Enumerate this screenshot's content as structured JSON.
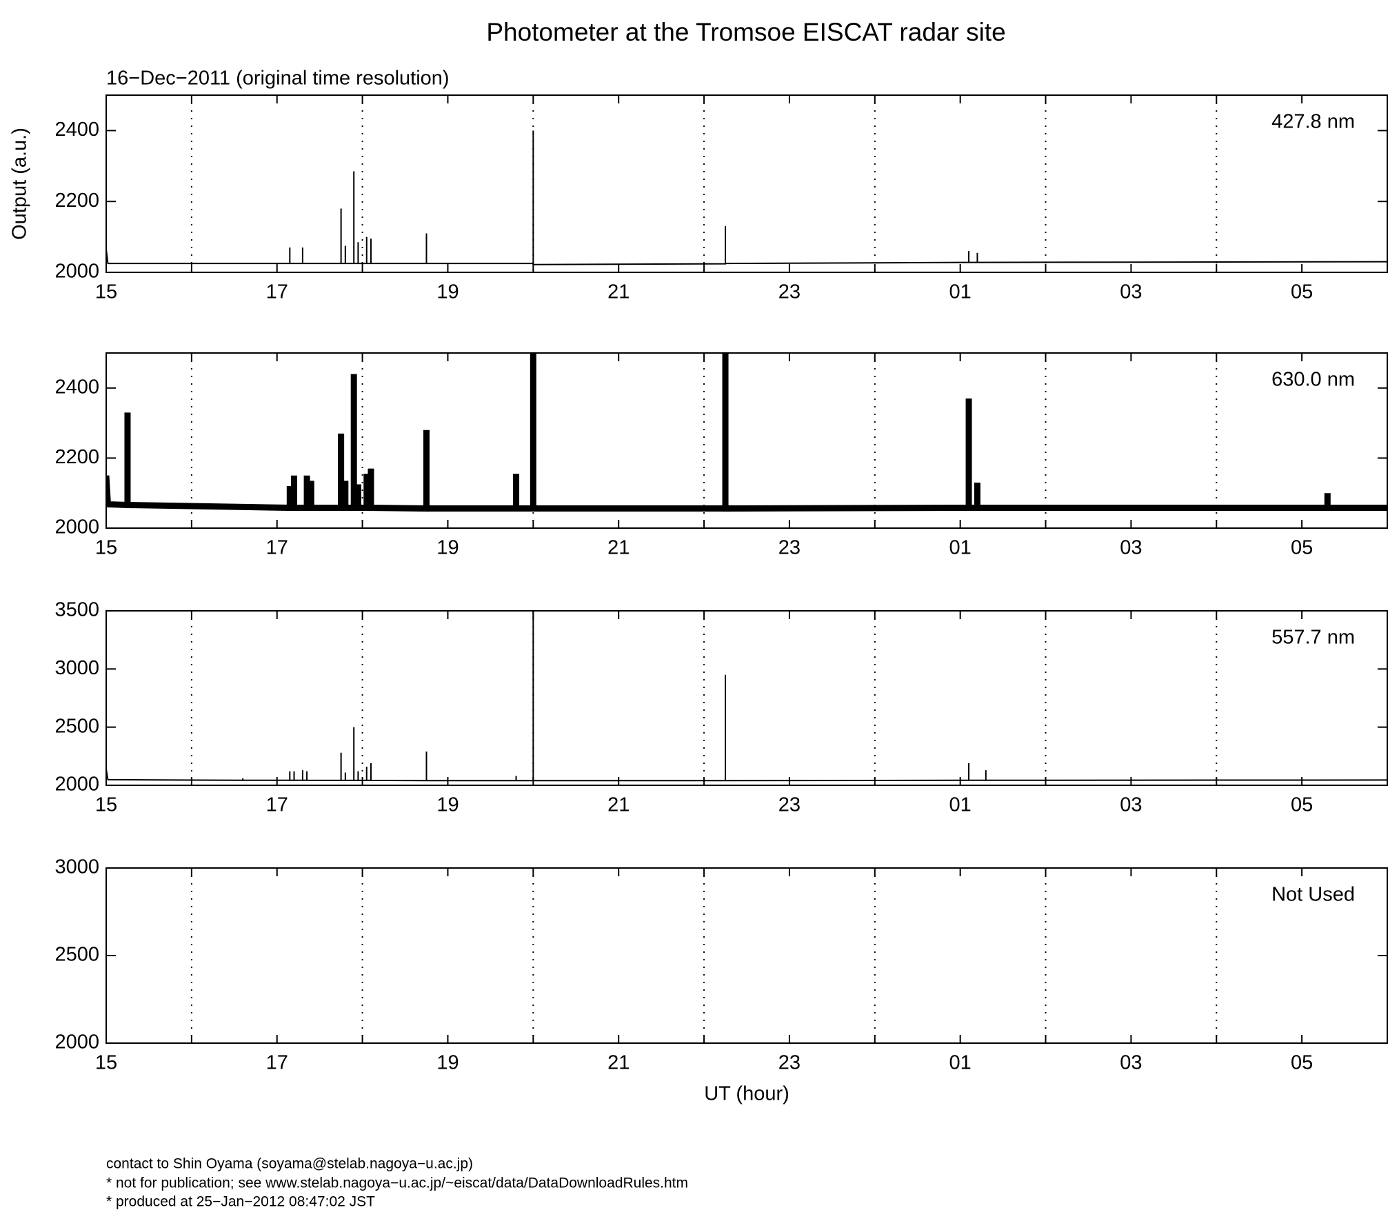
{
  "title": "Photometer at the Tromsoe EISCAT radar site",
  "subtitle": "16−Dec−2011 (original time resolution)",
  "footer": [
    "contact to Shin Oyama (soyama@stelab.nagoya−u.ac.jp)",
    "* not for publication; see www.stelab.nagoya−u.ac.jp/~eiscat/data/DataDownloadRules.htm",
    "* produced at 25−Jan−2012 08:47:02 JST"
  ],
  "chart_data": [
    {
      "type": "line",
      "label": "427.8 nm",
      "ylabel": "Output (a.u.)",
      "color": "#000000",
      "xlim": [
        15,
        30
      ],
      "xticks": [
        15,
        17,
        19,
        21,
        23,
        {
          "value": 25,
          "label": "01"
        },
        {
          "value": 27,
          "label": "03"
        },
        {
          "value": 29,
          "label": "05"
        }
      ],
      "xgrid": [
        16,
        18,
        20,
        22,
        24,
        26,
        28
      ],
      "ylim": [
        2000,
        2500
      ],
      "yticks": [
        2000,
        2200,
        2400
      ],
      "x": [
        15,
        15.02,
        17.15,
        17.15,
        17.15,
        17.3,
        17.3,
        17.3,
        17.75,
        17.75,
        17.75,
        17.8,
        17.8,
        17.8,
        17.9,
        17.9,
        17.9,
        17.95,
        17.95,
        17.95,
        18.05,
        18.05,
        18.05,
        18.1,
        18.1,
        18.1,
        18.75,
        18.75,
        18.75,
        20,
        20,
        20,
        22.25,
        22.25,
        22.25,
        25.1,
        25.1,
        25.1,
        25.2,
        25.2,
        25.2,
        30
      ],
      "values": [
        2065,
        2025,
        2025,
        2070,
        2025,
        2025,
        2070,
        2025,
        2025,
        2180,
        2025,
        2025,
        2075,
        2025,
        2025,
        2285,
        2025,
        2025,
        2085,
        2025,
        2025,
        2100,
        2025,
        2025,
        2095,
        2025,
        2025,
        2110,
        2025,
        2025,
        2400,
        2022,
        2024,
        2130,
        2025,
        2028,
        2060,
        2028,
        2028,
        2055,
        2028,
        2030
      ]
    },
    {
      "type": "line",
      "label": "630.0 nm",
      "color": "#000000",
      "xlim": [
        15,
        30
      ],
      "xticks": [
        15,
        17,
        19,
        21,
        23,
        {
          "value": 25,
          "label": "01"
        },
        {
          "value": 27,
          "label": "03"
        },
        {
          "value": 29,
          "label": "05"
        }
      ],
      "xgrid": [
        16,
        18,
        20,
        22,
        24,
        26,
        28
      ],
      "ylim": [
        2000,
        2500
      ],
      "yticks": [
        2000,
        2200,
        2400
      ],
      "x": [
        15,
        15.02,
        15.25,
        15.25,
        15.25,
        17.15,
        17.15,
        17.15,
        17.2,
        17.2,
        17.2,
        17.35,
        17.35,
        17.35,
        17.4,
        17.4,
        17.4,
        17.75,
        17.75,
        17.75,
        17.8,
        17.8,
        17.8,
        17.9,
        17.9,
        17.9,
        17.95,
        17.95,
        17.95,
        18.05,
        18.05,
        18.05,
        18.1,
        18.1,
        18.1,
        18.75,
        18.75,
        18.75,
        19.8,
        19.8,
        19.8,
        20,
        20,
        20,
        22.25,
        22.25,
        22.25,
        25.1,
        25.1,
        25.1,
        25.2,
        25.2,
        25.2,
        29.3,
        29.3,
        29.3,
        30
      ],
      "values": [
        2150,
        2068,
        2066,
        2330,
        2066,
        2058,
        2120,
        2058,
        2058,
        2150,
        2058,
        2058,
        2150,
        2058,
        2058,
        2135,
        2058,
        2058,
        2270,
        2058,
        2058,
        2135,
        2058,
        2058,
        2440,
        2058,
        2058,
        2125,
        2058,
        2058,
        2155,
        2058,
        2058,
        2170,
        2058,
        2056,
        2280,
        2056,
        2056,
        2155,
        2056,
        2056,
        2500,
        2056,
        2056,
        2500,
        2056,
        2058,
        2370,
        2058,
        2058,
        2130,
        2058,
        2058,
        2100,
        2058,
        2058
      ]
    },
    {
      "type": "line",
      "label": "557.7 nm",
      "color": "#000000",
      "xlim": [
        15,
        30
      ],
      "xticks": [
        15,
        17,
        19,
        21,
        23,
        {
          "value": 25,
          "label": "01"
        },
        {
          "value": 27,
          "label": "03"
        },
        {
          "value": 29,
          "label": "05"
        }
      ],
      "xgrid": [
        16,
        18,
        20,
        22,
        24,
        26,
        28
      ],
      "ylim": [
        2000,
        3500
      ],
      "yticks": [
        2000,
        2500,
        3000,
        3500
      ],
      "x": [
        15,
        15.02,
        16.6,
        16.6,
        16.6,
        17.15,
        17.15,
        17.15,
        17.2,
        17.2,
        17.2,
        17.3,
        17.3,
        17.3,
        17.35,
        17.35,
        17.35,
        17.75,
        17.75,
        17.75,
        17.8,
        17.8,
        17.8,
        17.9,
        17.9,
        17.9,
        17.95,
        17.95,
        17.95,
        18.05,
        18.05,
        18.05,
        18.1,
        18.1,
        18.1,
        18.75,
        18.75,
        18.75,
        19.8,
        19.8,
        19.8,
        20,
        20,
        20,
        22.25,
        22.25,
        22.25,
        25.1,
        25.1,
        25.1,
        25.3,
        25.3,
        25.3,
        30
      ],
      "values": [
        2140,
        2048,
        2043,
        2060,
        2043,
        2043,
        2120,
        2043,
        2043,
        2120,
        2043,
        2043,
        2130,
        2043,
        2043,
        2120,
        2043,
        2042,
        2280,
        2042,
        2042,
        2110,
        2042,
        2042,
        2500,
        2042,
        2042,
        2120,
        2042,
        2042,
        2160,
        2042,
        2042,
        2190,
        2042,
        2040,
        2290,
        2040,
        2040,
        2080,
        2040,
        2040,
        3500,
        2040,
        2040,
        2950,
        2040,
        2043,
        2190,
        2043,
        2043,
        2130,
        2043,
        2045
      ]
    },
    {
      "type": "line",
      "label": "Not Used",
      "xlabel": "UT (hour)",
      "xlim": [
        15,
        30
      ],
      "xticks": [
        15,
        17,
        19,
        21,
        23,
        {
          "value": 25,
          "label": "01"
        },
        {
          "value": 27,
          "label": "03"
        },
        {
          "value": 29,
          "label": "05"
        }
      ],
      "xgrid": [
        16,
        18,
        20,
        22,
        24,
        26,
        28
      ],
      "ylim": [
        2000,
        3000
      ],
      "yticks": [
        2000,
        2500,
        3000
      ]
    }
  ]
}
